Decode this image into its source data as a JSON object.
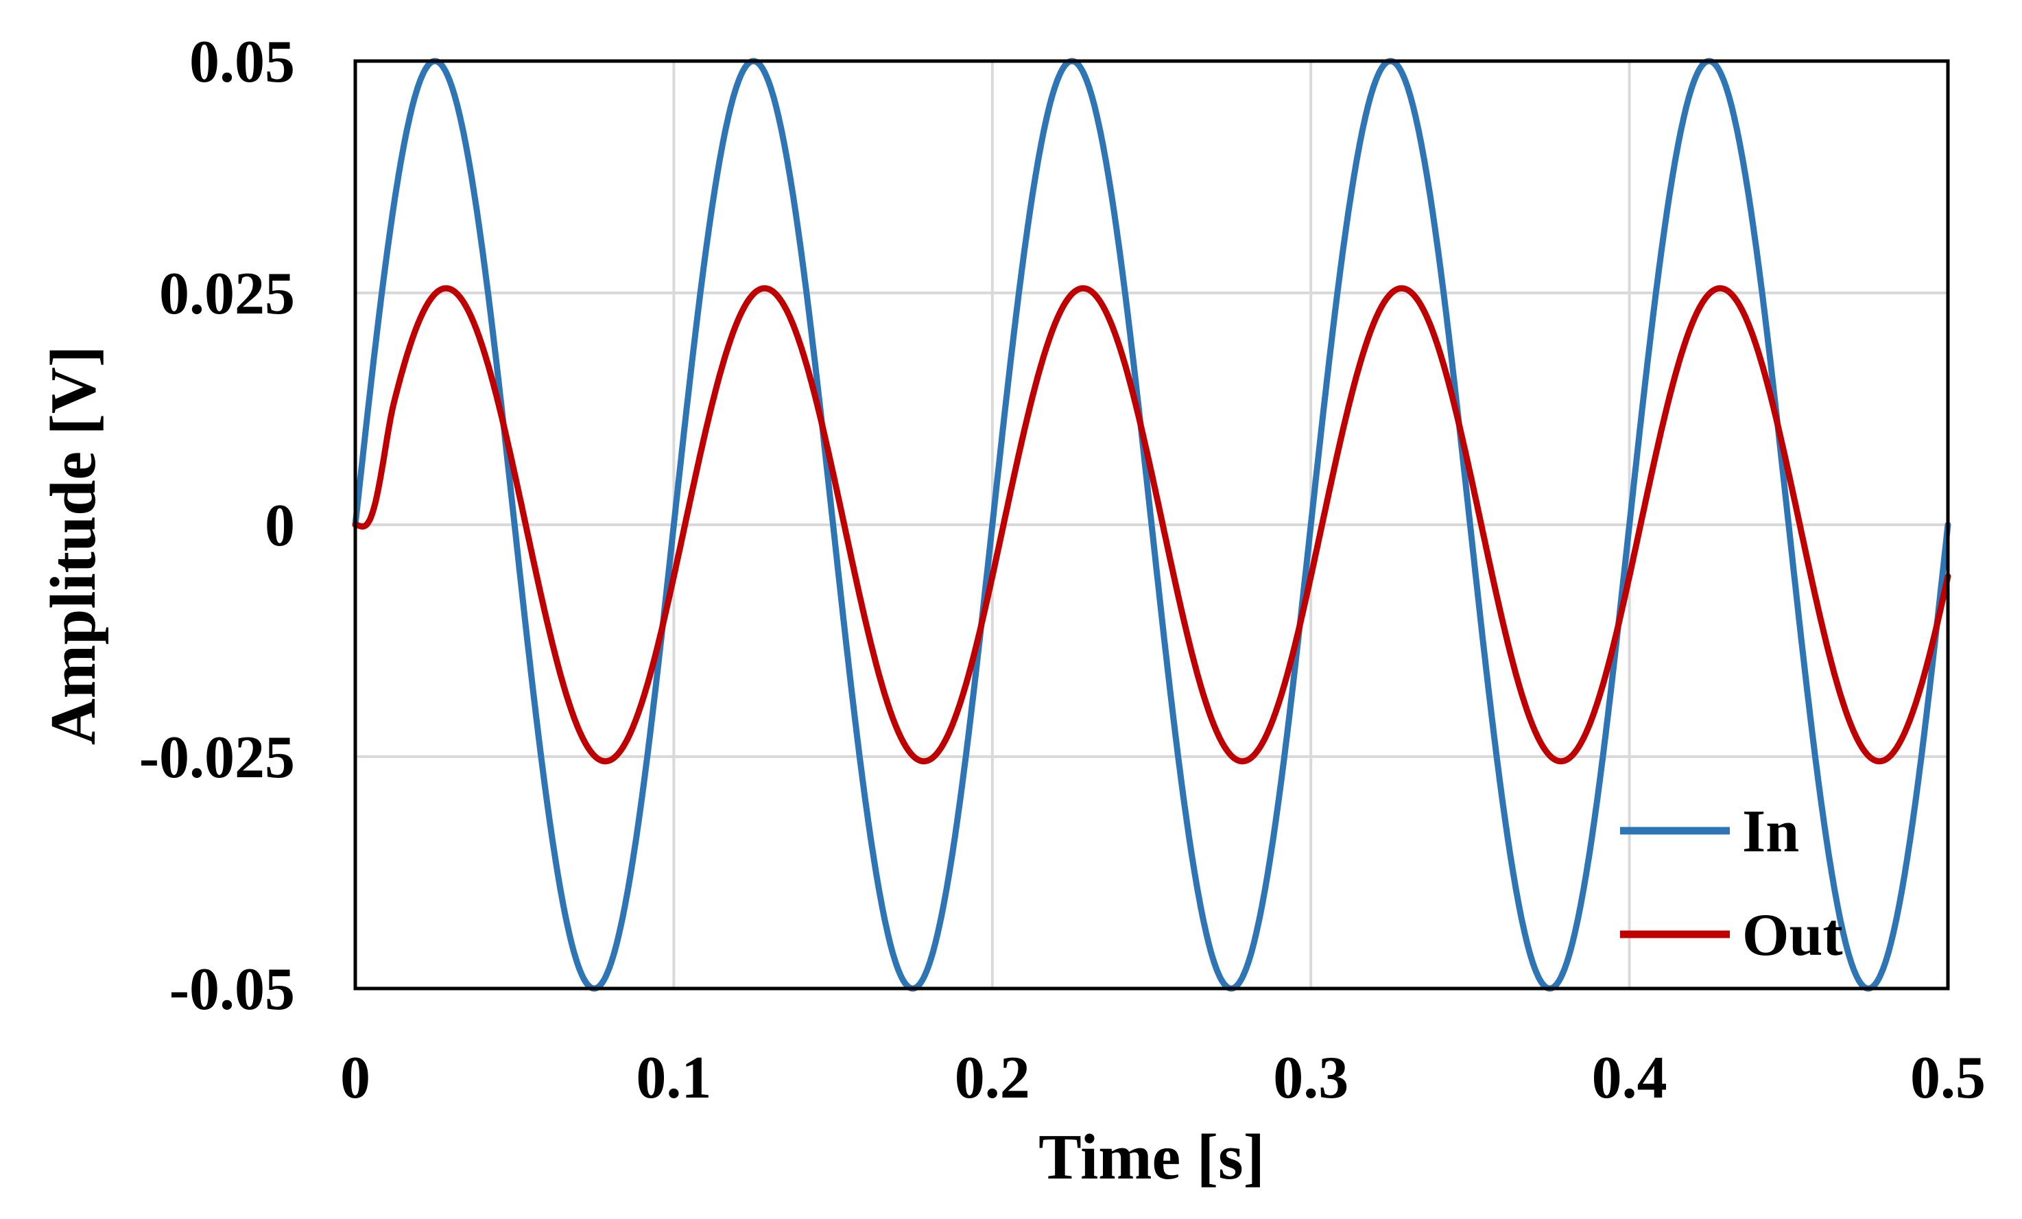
{
  "chart_data": {
    "type": "line",
    "title": "",
    "xlabel": "Time [s]",
    "ylabel": "Amplitude [V]",
    "xlim": [
      0,
      0.5
    ],
    "ylim": [
      -0.05,
      0.05
    ],
    "grid": true,
    "x_ticks": [
      {
        "value": 0,
        "label": "0"
      },
      {
        "value": 0.1,
        "label": "0.1"
      },
      {
        "value": 0.2,
        "label": "0.2"
      },
      {
        "value": 0.3,
        "label": "0.3"
      },
      {
        "value": 0.4,
        "label": "0.4"
      },
      {
        "value": 0.5,
        "label": "0.5"
      }
    ],
    "y_ticks": [
      {
        "value": 0.05,
        "label": "0.05"
      },
      {
        "value": 0.025,
        "label": "0.025"
      },
      {
        "value": 0,
        "label": "0"
      },
      {
        "value": -0.025,
        "label": "-0.025"
      },
      {
        "value": -0.05,
        "label": "-0.05"
      }
    ],
    "legend_position": "bottom-right",
    "series": [
      {
        "name": "In",
        "color": "#2E75B6",
        "function": "sine",
        "amplitude": 0.05,
        "frequency_hz": 10,
        "phase_delay_s": 0,
        "startup_transient_s": 0
      },
      {
        "name": "Out",
        "color": "#C00000",
        "function": "sine",
        "amplitude": 0.0255,
        "frequency_hz": 10,
        "phase_delay_s": 0.0035,
        "startup_transient_s": 0.012
      }
    ]
  }
}
